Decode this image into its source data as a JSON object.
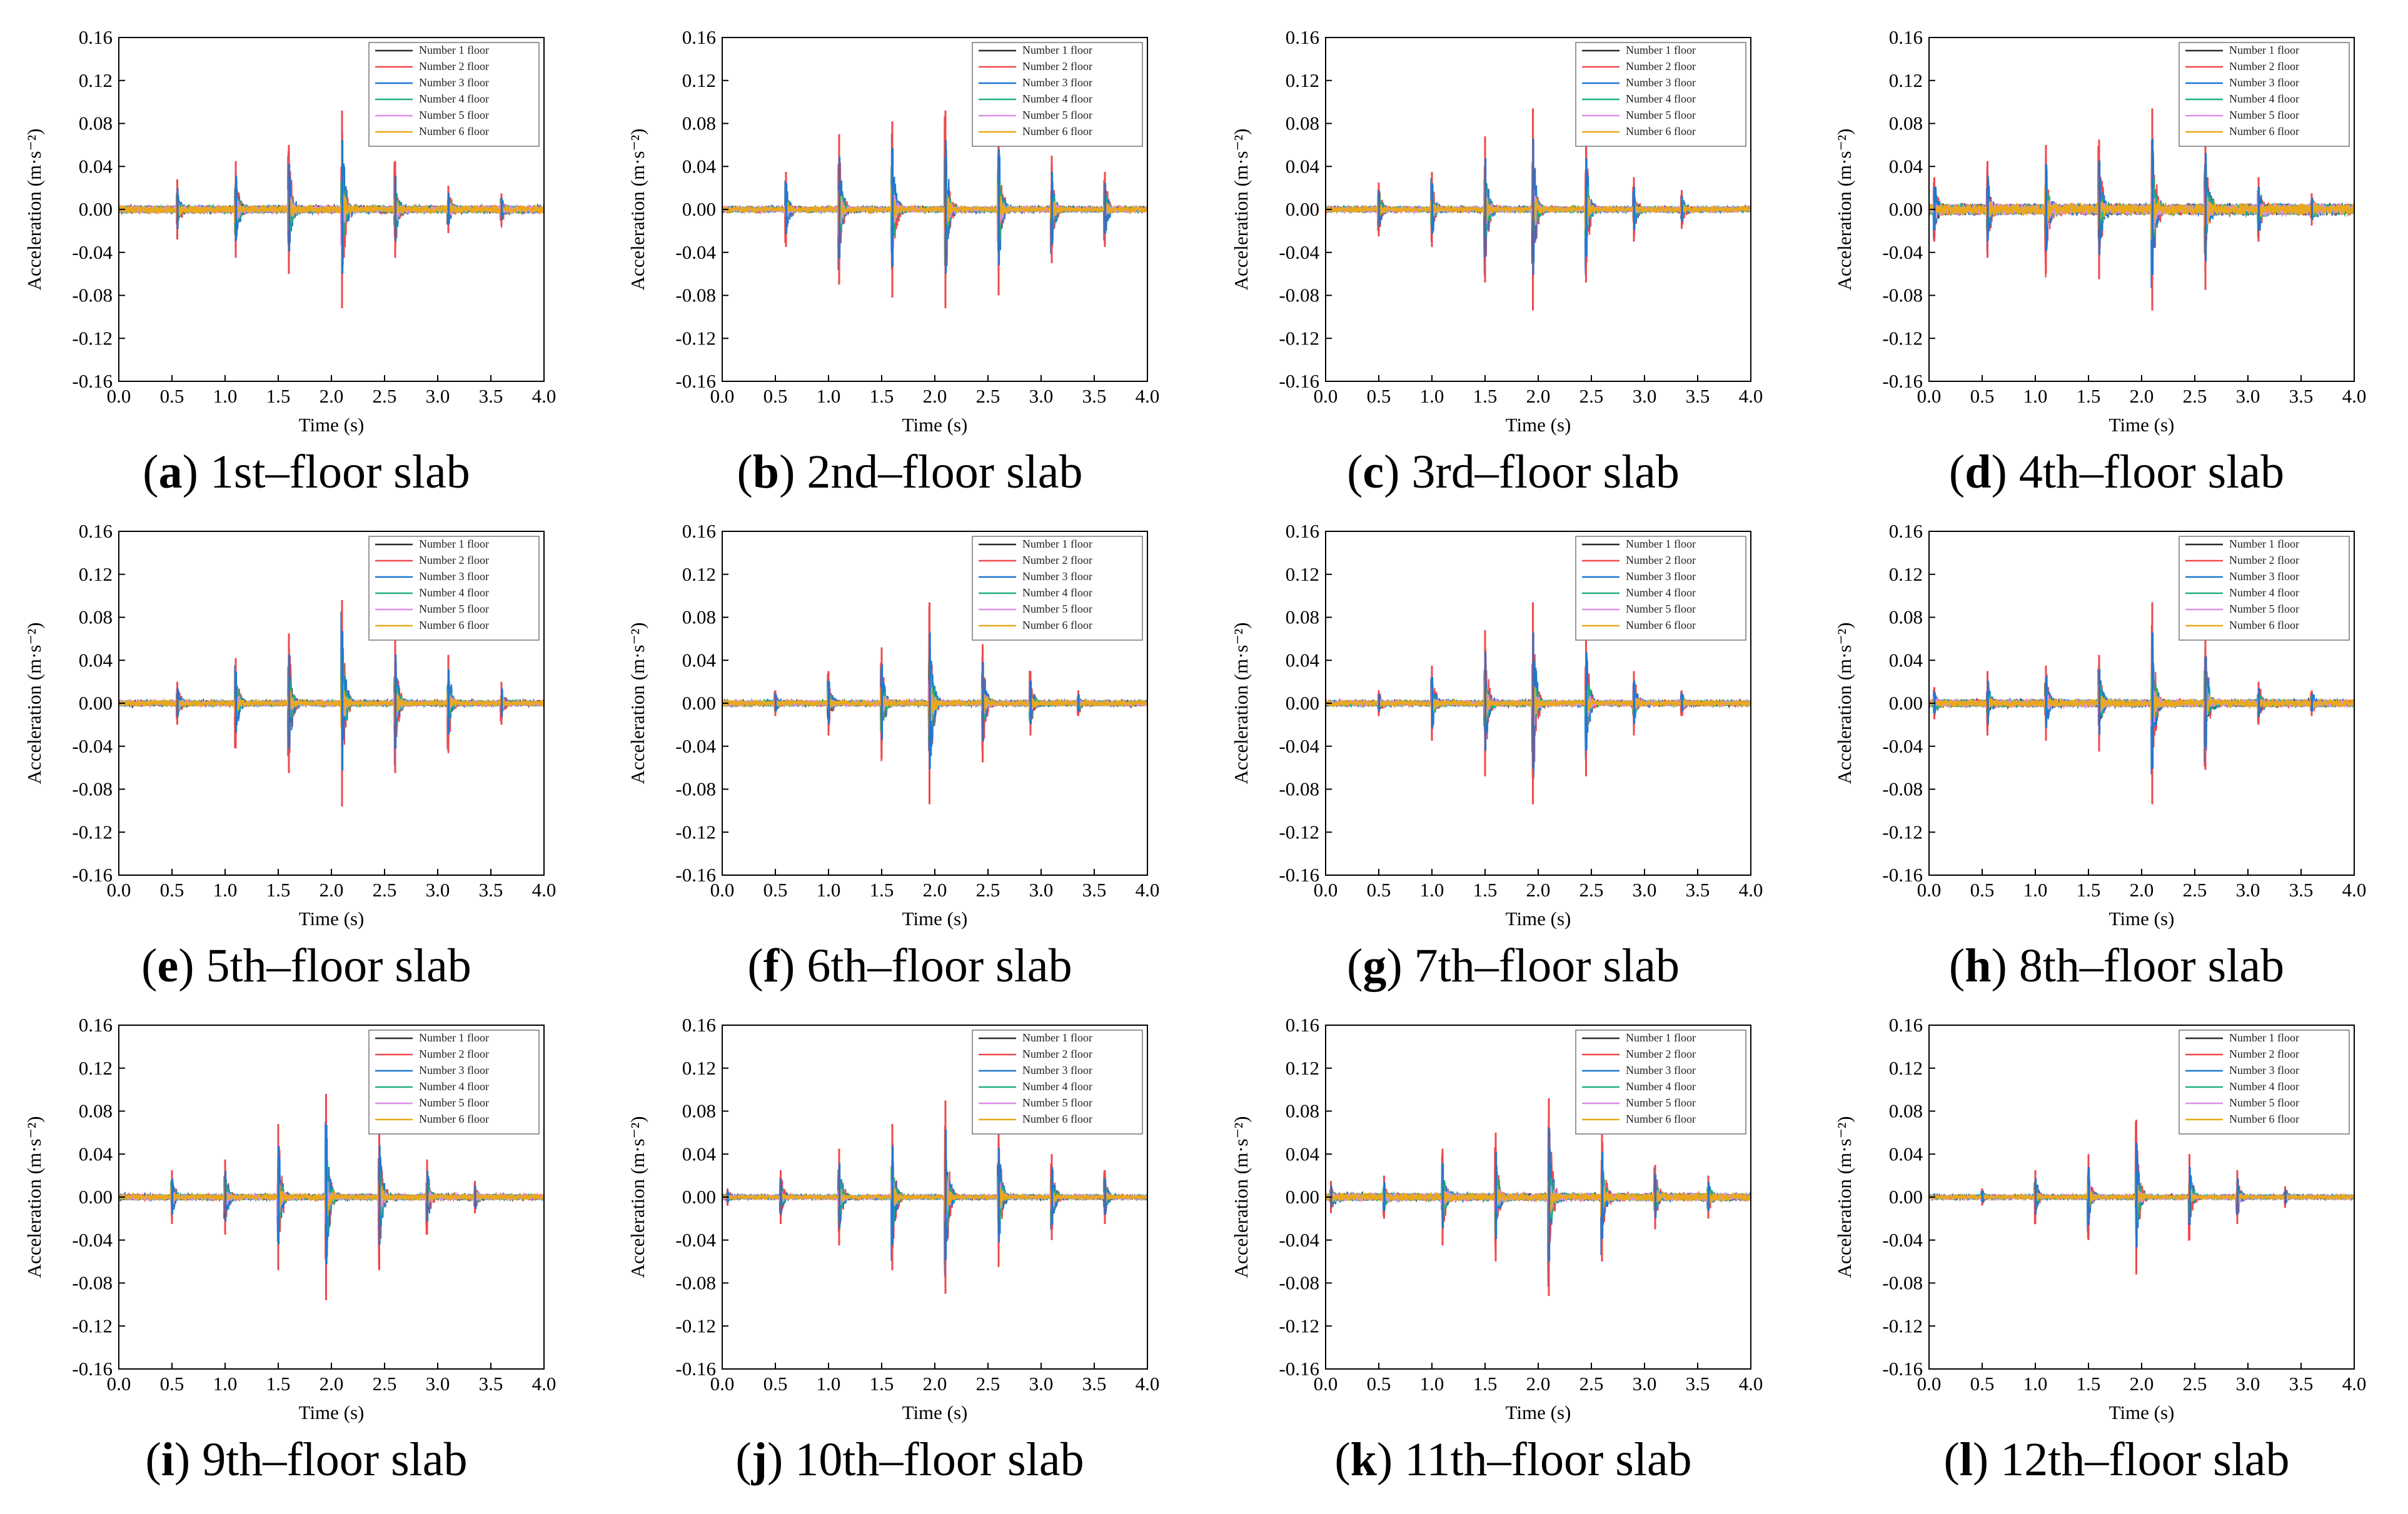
{
  "figure": {
    "description_free": true
  },
  "legend": [
    {
      "name": "Number 1 floor",
      "color": "#2b2b2b"
    },
    {
      "name": "Number 2 floor",
      "color": "#f0484b"
    },
    {
      "name": "Number 3 floor",
      "color": "#1f77d0"
    },
    {
      "name": "Number 4 floor",
      "color": "#20b27a"
    },
    {
      "name": "Number 5 floor",
      "color": "#dd8ee8"
    },
    {
      "name": "Number 6 floor",
      "color": "#e9a91a"
    }
  ],
  "chart_data": [
    {
      "id": "a",
      "type": "line",
      "letter": "a",
      "caption": " 1st–floor slab",
      "xlabel": "Time (s)",
      "ylabel": "Acceleration (m·s⁻²)",
      "xlim": [
        0,
        4
      ],
      "ylim": [
        -0.16,
        0.16
      ],
      "xticks": [
        "0.0",
        "0.5",
        "1.0",
        "1.5",
        "2.0",
        "2.5",
        "3.0",
        "3.5",
        "4.0"
      ],
      "yticks": [
        "0.16",
        "0.12",
        "0.08",
        "0.04",
        "0.00",
        "-0.04",
        "-0.08",
        "-0.12",
        "-0.16"
      ],
      "peak_times": [
        0.55,
        1.1,
        1.6,
        2.1,
        2.6,
        3.1,
        3.6
      ],
      "peak_amplitudes": [
        0.028,
        0.045,
        0.06,
        0.092,
        0.045,
        0.022,
        0.015
      ],
      "baseline_noise": 0.004
    },
    {
      "id": "b",
      "type": "line",
      "letter": "b",
      "caption": " 2nd–floor slab",
      "xlabel": "Time (s)",
      "ylabel": "Acceleration (m·s⁻²)",
      "xlim": [
        0,
        4
      ],
      "ylim": [
        -0.16,
        0.16
      ],
      "xticks": [
        "0.0",
        "0.5",
        "1.0",
        "1.5",
        "2.0",
        "2.5",
        "3.0",
        "3.5",
        "4.0"
      ],
      "yticks": [
        "0.16",
        "0.12",
        "0.08",
        "0.04",
        "0.00",
        "-0.04",
        "-0.08",
        "-0.12",
        "-0.16"
      ],
      "peak_times": [
        0.6,
        1.1,
        1.6,
        2.1,
        2.6,
        3.1,
        3.6
      ],
      "peak_amplitudes": [
        0.035,
        0.07,
        0.082,
        0.092,
        0.08,
        0.05,
        0.035
      ],
      "baseline_noise": 0.003
    },
    {
      "id": "c",
      "type": "line",
      "letter": "c",
      "caption": " 3rd–floor slab",
      "xlabel": "Time (s)",
      "ylabel": "Acceleration (m·s⁻²)",
      "xlim": [
        0,
        4
      ],
      "ylim": [
        -0.16,
        0.16
      ],
      "xticks": [
        "0.0",
        "0.5",
        "1.0",
        "1.5",
        "2.0",
        "2.5",
        "3.0",
        "3.5",
        "4.0"
      ],
      "yticks": [
        "0.16",
        "0.12",
        "0.08",
        "0.04",
        "0.00",
        "-0.04",
        "-0.08",
        "-0.12",
        "-0.16"
      ],
      "peak_times": [
        0.5,
        1.0,
        1.5,
        1.95,
        2.45,
        2.9,
        3.35
      ],
      "peak_amplitudes": [
        0.025,
        0.035,
        0.068,
        0.094,
        0.068,
        0.03,
        0.018
      ],
      "baseline_noise": 0.003
    },
    {
      "id": "d",
      "type": "line",
      "letter": "d",
      "caption": " 4th–floor slab",
      "xlabel": "Time (s)",
      "ylabel": "Acceleration (m·s⁻²)",
      "xlim": [
        0,
        4
      ],
      "ylim": [
        -0.16,
        0.16
      ],
      "xticks": [
        "0.0",
        "0.5",
        "1.0",
        "1.5",
        "2.0",
        "2.5",
        "3.0",
        "3.5",
        "4.0"
      ],
      "yticks": [
        "0.16",
        "0.12",
        "0.08",
        "0.04",
        "0.00",
        "-0.04",
        "-0.08",
        "-0.12",
        "-0.16"
      ],
      "peak_times": [
        0.05,
        0.55,
        1.1,
        1.6,
        2.1,
        2.6,
        3.1,
        3.6
      ],
      "peak_amplitudes": [
        0.03,
        0.045,
        0.06,
        0.065,
        0.094,
        0.075,
        0.03,
        0.015
      ],
      "baseline_noise": 0.006
    },
    {
      "id": "e",
      "type": "line",
      "letter": "e",
      "caption": " 5th–floor slab",
      "xlabel": "Time (s)",
      "ylabel": "Acceleration (m·s⁻²)",
      "xlim": [
        0,
        4
      ],
      "ylim": [
        -0.16,
        0.16
      ],
      "xticks": [
        "0.0",
        "0.5",
        "1.0",
        "1.5",
        "2.0",
        "2.5",
        "3.0",
        "3.5",
        "4.0"
      ],
      "yticks": [
        "0.16",
        "0.12",
        "0.08",
        "0.04",
        "0.00",
        "-0.04",
        "-0.08",
        "-0.12",
        "-0.16"
      ],
      "peak_times": [
        0.55,
        1.1,
        1.6,
        2.1,
        2.6,
        3.1,
        3.6
      ],
      "peak_amplitudes": [
        0.02,
        0.042,
        0.065,
        0.096,
        0.065,
        0.045,
        0.02
      ],
      "baseline_noise": 0.003
    },
    {
      "id": "f",
      "type": "line",
      "letter": "f",
      "caption": " 6th–floor slab",
      "xlabel": "Time (s)",
      "ylabel": "Acceleration (m·s⁻²)",
      "xlim": [
        0,
        4
      ],
      "ylim": [
        -0.16,
        0.16
      ],
      "xticks": [
        "0.0",
        "0.5",
        "1.0",
        "1.5",
        "2.0",
        "2.5",
        "3.0",
        "3.5",
        "4.0"
      ],
      "yticks": [
        "0.16",
        "0.12",
        "0.08",
        "0.04",
        "0.00",
        "-0.04",
        "-0.08",
        "-0.12",
        "-0.16"
      ],
      "peak_times": [
        0.5,
        1.0,
        1.5,
        1.95,
        2.45,
        2.9,
        3.35
      ],
      "peak_amplitudes": [
        0.012,
        0.03,
        0.052,
        0.094,
        0.055,
        0.03,
        0.012
      ],
      "baseline_noise": 0.003
    },
    {
      "id": "g",
      "type": "line",
      "letter": "g",
      "caption": " 7th–floor slab",
      "xlabel": "Time (s)",
      "ylabel": "Acceleration (m·s⁻²)",
      "xlim": [
        0,
        4
      ],
      "ylim": [
        -0.16,
        0.16
      ],
      "xticks": [
        "0.0",
        "0.5",
        "1.0",
        "1.5",
        "2.0",
        "2.5",
        "3.0",
        "3.5",
        "4.0"
      ],
      "yticks": [
        "0.16",
        "0.12",
        "0.08",
        "0.04",
        "0.00",
        "-0.04",
        "-0.08",
        "-0.12",
        "-0.16"
      ],
      "peak_times": [
        0.5,
        1.0,
        1.5,
        1.95,
        2.45,
        2.9,
        3.35
      ],
      "peak_amplitudes": [
        0.012,
        0.035,
        0.068,
        0.094,
        0.068,
        0.03,
        0.012
      ],
      "baseline_noise": 0.003
    },
    {
      "id": "h",
      "type": "line",
      "letter": "h",
      "caption": " 8th–floor slab",
      "xlabel": "Time (s)",
      "ylabel": "Acceleration (m·s⁻²)",
      "xlim": [
        0,
        4
      ],
      "ylim": [
        -0.16,
        0.16
      ],
      "xticks": [
        "0.0",
        "0.5",
        "1.0",
        "1.5",
        "2.0",
        "2.5",
        "3.0",
        "3.5",
        "4.0"
      ],
      "yticks": [
        "0.16",
        "0.12",
        "0.08",
        "0.04",
        "0.00",
        "-0.04",
        "-0.08",
        "-0.12",
        "-0.16"
      ],
      "peak_times": [
        0.05,
        0.55,
        1.1,
        1.6,
        2.1,
        2.6,
        3.1,
        3.6
      ],
      "peak_amplitudes": [
        0.015,
        0.03,
        0.035,
        0.045,
        0.094,
        0.062,
        0.02,
        0.012
      ],
      "baseline_noise": 0.004
    },
    {
      "id": "i",
      "type": "line",
      "letter": "i",
      "caption": " 9th–floor slab",
      "xlabel": "Time (s)",
      "ylabel": "Acceleration (m·s⁻²)",
      "xlim": [
        0,
        4
      ],
      "ylim": [
        -0.16,
        0.16
      ],
      "xticks": [
        "0.0",
        "0.5",
        "1.0",
        "1.5",
        "2.0",
        "2.5",
        "3.0",
        "3.5",
        "4.0"
      ],
      "yticks": [
        "0.16",
        "0.12",
        "0.08",
        "0.04",
        "0.00",
        "-0.04",
        "-0.08",
        "-0.12",
        "-0.16"
      ],
      "peak_times": [
        0.5,
        1.0,
        1.5,
        1.95,
        2.45,
        2.9,
        3.35
      ],
      "peak_amplitudes": [
        0.025,
        0.035,
        0.068,
        0.096,
        0.068,
        0.035,
        0.015
      ],
      "baseline_noise": 0.003
    },
    {
      "id": "j",
      "type": "line",
      "letter": "j",
      "caption": " 10th–floor slab",
      "xlabel": "Time (s)",
      "ylabel": "Acceleration (m·s⁻²)",
      "xlim": [
        0,
        4
      ],
      "ylim": [
        -0.16,
        0.16
      ],
      "xticks": [
        "0.0",
        "0.5",
        "1.0",
        "1.5",
        "2.0",
        "2.5",
        "3.0",
        "3.5",
        "4.0"
      ],
      "yticks": [
        "0.16",
        "0.12",
        "0.08",
        "0.04",
        "0.00",
        "-0.04",
        "-0.08",
        "-0.12",
        "-0.16"
      ],
      "peak_times": [
        0.05,
        0.55,
        1.1,
        1.6,
        2.1,
        2.6,
        3.1,
        3.6
      ],
      "peak_amplitudes": [
        0.008,
        0.025,
        0.045,
        0.068,
        0.09,
        0.065,
        0.04,
        0.025
      ],
      "baseline_noise": 0.002
    },
    {
      "id": "k",
      "type": "line",
      "letter": "k",
      "caption": " 11th–floor slab",
      "xlabel": "Time (s)",
      "ylabel": "Acceleration (m·s⁻²)",
      "xlim": [
        0,
        4
      ],
      "ylim": [
        -0.16,
        0.16
      ],
      "xticks": [
        "0.0",
        "0.5",
        "1.0",
        "1.5",
        "2.0",
        "2.5",
        "3.0",
        "3.5",
        "4.0"
      ],
      "yticks": [
        "0.16",
        "0.12",
        "0.08",
        "0.04",
        "0.00",
        "-0.04",
        "-0.08",
        "-0.12",
        "-0.16"
      ],
      "peak_times": [
        0.05,
        0.55,
        1.1,
        1.6,
        2.1,
        2.6,
        3.1,
        3.6
      ],
      "peak_amplitudes": [
        0.015,
        0.02,
        0.045,
        0.06,
        0.092,
        0.06,
        0.03,
        0.02
      ],
      "baseline_noise": 0.004
    },
    {
      "id": "l",
      "type": "line",
      "letter": "l",
      "caption": " 12th–floor slab",
      "xlabel": "Time (s)",
      "ylabel": "Acceleration (m·s⁻²)",
      "xlim": [
        0,
        4
      ],
      "ylim": [
        -0.16,
        0.16
      ],
      "xticks": [
        "0.0",
        "0.5",
        "1.0",
        "1.5",
        "2.0",
        "2.5",
        "3.0",
        "3.5",
        "4.0"
      ],
      "yticks": [
        "0.16",
        "0.12",
        "0.08",
        "0.04",
        "0.00",
        "-0.04",
        "-0.08",
        "-0.12",
        "-0.16"
      ],
      "peak_times": [
        0.5,
        1.0,
        1.5,
        1.95,
        2.45,
        2.9,
        3.35
      ],
      "peak_amplitudes": [
        0.008,
        0.025,
        0.04,
        0.072,
        0.04,
        0.025,
        0.01
      ],
      "baseline_noise": 0.002
    }
  ]
}
